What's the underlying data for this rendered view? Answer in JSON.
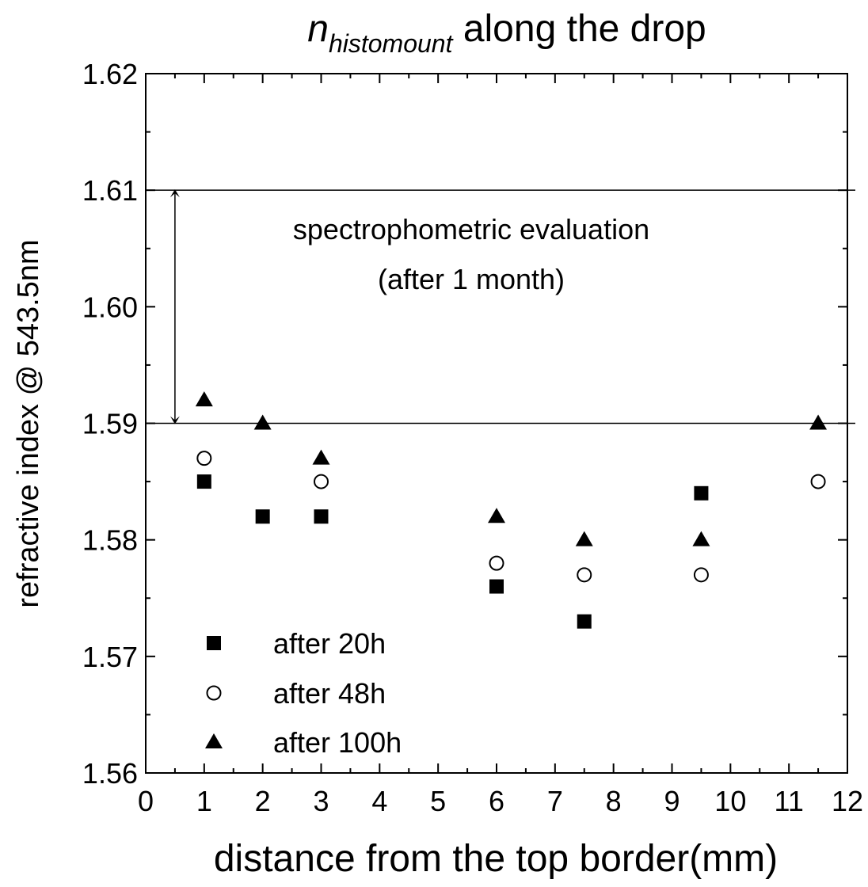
{
  "chart_data": {
    "type": "scatter",
    "title_main": "n",
    "title_sub": "histomount",
    "title_rest": " along the drop",
    "xlabel": "distance from the top border(mm)",
    "ylabel": "refractive index @ 543.5nm",
    "xlim": [
      0,
      12
    ],
    "ylim": [
      1.56,
      1.62
    ],
    "x_ticks": [
      "0",
      "1",
      "2",
      "3",
      "4",
      "5",
      "6",
      "7",
      "8",
      "9",
      "10",
      "11",
      "12"
    ],
    "y_ticks": [
      "1.56",
      "1.57",
      "1.58",
      "1.59",
      "1.60",
      "1.61",
      "1.62"
    ],
    "grid": false,
    "legend_position": "bottom-left",
    "series": [
      {
        "name": "after 20h",
        "marker": "filled-square",
        "x": [
          1,
          2,
          3,
          6,
          7.5,
          9.5
        ],
        "y": [
          1.585,
          1.582,
          1.582,
          1.576,
          1.573,
          1.584
        ]
      },
      {
        "name": "after 48h",
        "marker": "open-circle",
        "x": [
          1,
          3,
          6,
          7.5,
          9.5,
          11.5
        ],
        "y": [
          1.587,
          1.585,
          1.578,
          1.577,
          1.577,
          1.585
        ]
      },
      {
        "name": "after 100h",
        "marker": "filled-triangle",
        "x": [
          1,
          2,
          3,
          6,
          7.5,
          9.5,
          11.5
        ],
        "y": [
          1.592,
          1.59,
          1.587,
          1.582,
          1.58,
          1.58,
          1.59
        ]
      }
    ],
    "reference_lines": [
      1.61,
      1.59
    ],
    "annotation": {
      "line1": "spectrophometric evaluation",
      "line2": "(after 1 month)",
      "arrow_x": 0.5,
      "arrow_range": [
        1.59,
        1.61
      ]
    }
  }
}
